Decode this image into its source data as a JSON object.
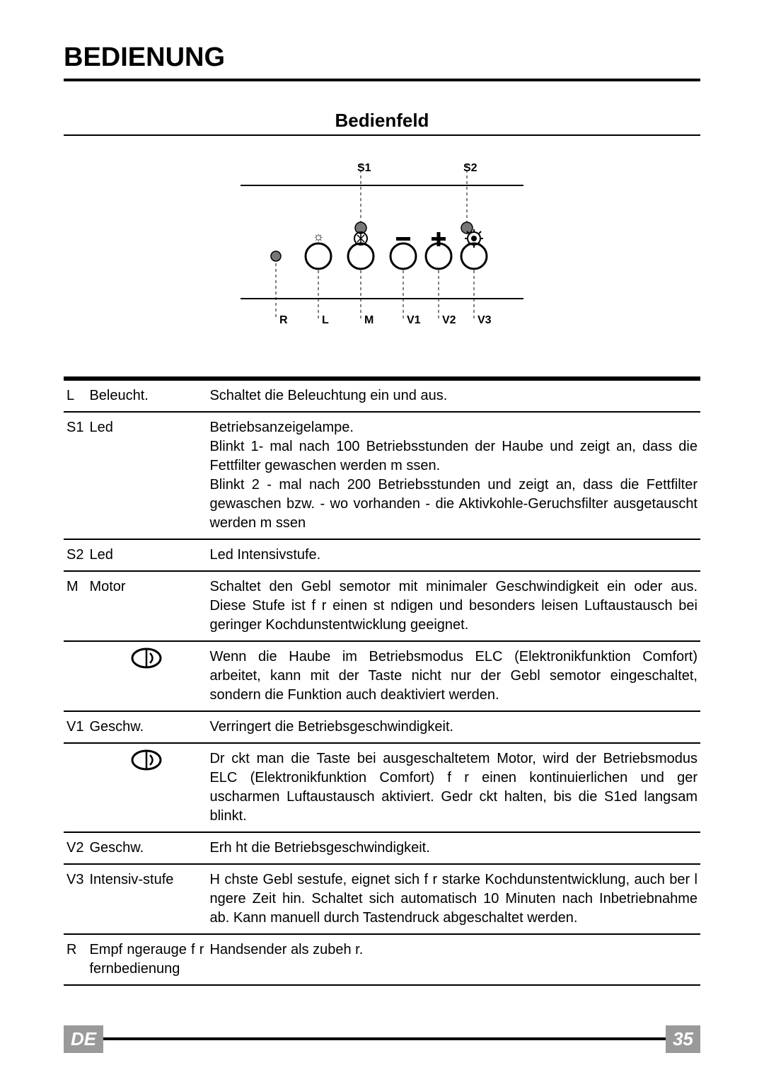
{
  "heading": "BEDIENUNG",
  "subheading": "Bedienfeld",
  "diagram": {
    "top_labels": [
      "S1",
      "S2"
    ],
    "bottom_labels": [
      "R",
      "L",
      "M",
      "V1",
      "V2",
      "V3"
    ],
    "colors": {
      "stroke": "#000000",
      "fill": "#ffffff",
      "led": "#888888",
      "dash": "#000000"
    }
  },
  "rows": [
    {
      "key": "L",
      "label": "Beleucht.",
      "desc": "Schaltet die Beleuchtung ein und aus."
    },
    {
      "key": "S1",
      "label": "Led",
      "desc": "Betriebsanzeigelampe.\nBlinkt 1- mal nach 100 Betriebsstunden der Haube und zeigt an, dass die Fettfilter gewaschen werden m ssen.\nBlinkt 2 - mal nach 200 Betriebsstunden und zeigt an, dass die Fettfilter gewaschen bzw. - wo vorhanden  - die Aktivkohle-Geruchsfilter ausgetauscht werden m ssen"
    },
    {
      "key": "S2",
      "label": "Led",
      "desc": "Led Intensivstufe."
    },
    {
      "key": "M",
      "label": "Motor",
      "desc": "Schaltet den Gebl semotor mit minimaler Geschwindigkeit ein oder aus. Diese Stufe ist f r einen st ndigen und besonders leisen Luftaustausch bei geringer Kochdunstentwicklung geeignet."
    },
    {
      "key": "",
      "label": "",
      "icon": true,
      "desc": "Wenn die Haube im Betriebsmodus  ELC (Elektronikfunktion Comfort) arbeitet, kann mit der Taste nicht nur der Gebl semotor eingeschaltet, sondern die Funktion auch deaktiviert werden."
    },
    {
      "key": "V1",
      "label": "Geschw.",
      "desc": "Verringert die Betriebsgeschwindigkeit."
    },
    {
      "key": "",
      "label": "",
      "icon": true,
      "desc": "Dr ckt man die Taste bei ausgeschaltetem Motor, wird der Betriebsmodus ELC (Elektronikfunktion Comfort) f r einen kontinuierlichen und ger uscharmen Luftaustausch aktiviert. Gedr ckt halten, bis die S1ed langsam blinkt."
    },
    {
      "key": "V2",
      "label": "Geschw.",
      "desc": "Erh ht die Betriebsgeschwindigkeit."
    },
    {
      "key": "V3",
      "label": "Intensiv-stufe",
      "desc": "H chste Gebl sestufe, eignet sich f r starke Kochdunstentwicklung, auch  ber l ngere Zeit hin. Schaltet sich automatisch 10 Minuten nach Inbetriebnahme ab. Kann manuell durch Tastendruck abgeschaltet werden."
    },
    {
      "key": "R",
      "label": "Empf ngerauge f r fernbedienung",
      "desc": "Handsender als zubeh r."
    }
  ],
  "footer": {
    "lang": "DE",
    "page": "35",
    "bg_color": "#9a9a9a",
    "text_color": "#ffffff"
  }
}
